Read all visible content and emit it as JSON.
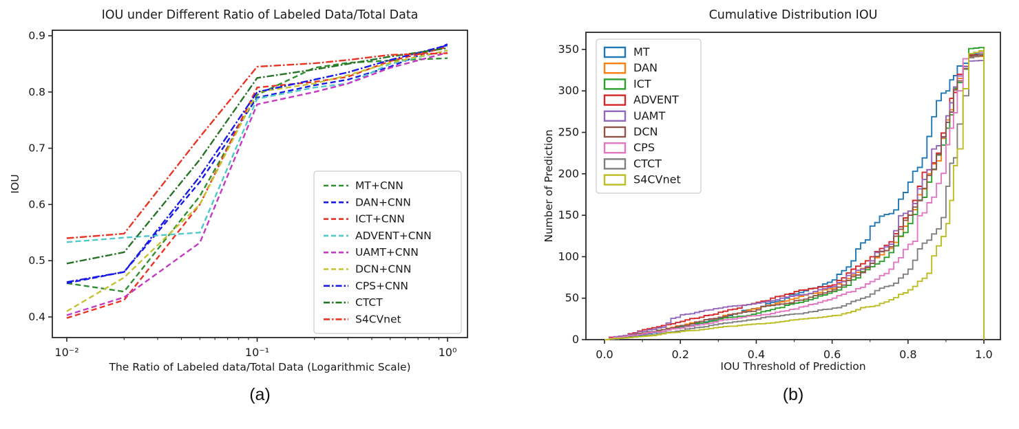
{
  "page": {
    "background": "#ffffff",
    "text_color": "#1a1a1a"
  },
  "chart_data": [
    {
      "id": "a",
      "type": "line",
      "title": "IOU under Different Ratio of Labeled Data/Total Data",
      "xlabel": "The Ratio of Labeled data/Total Data (Logarithmic Scale)",
      "ylabel": "IOU",
      "caption": "(a)",
      "xscale": "log",
      "xlim_log10": [
        -2.076,
        0.105
      ],
      "ylim": [
        0.378,
        0.91
      ],
      "xticks": [
        {
          "v": 0.01,
          "label": "10⁻²"
        },
        {
          "v": 0.1,
          "label": "10⁻¹"
        },
        {
          "v": 1.0,
          "label": "10⁰"
        }
      ],
      "yticks": [
        "0.4",
        "0.5",
        "0.6",
        "0.7",
        "0.8",
        "0.9"
      ],
      "grid": false,
      "legend_position": "lower right",
      "x": [
        0.01,
        0.02,
        0.05,
        0.1,
        0.2,
        0.3,
        0.5,
        1.0
      ],
      "series": [
        {
          "name": "MT+CNN",
          "color": "#2f8f2f",
          "dash": "dashed",
          "values": [
            0.46,
            0.445,
            0.615,
            0.795,
            0.843,
            0.852,
            0.856,
            0.86
          ]
        },
        {
          "name": "DAN+CNN",
          "color": "#1a1ae6",
          "dash": "dashed",
          "values": [
            0.46,
            0.48,
            0.64,
            0.79,
            0.812,
            0.822,
            0.845,
            0.885
          ]
        },
        {
          "name": "ICT+CNN",
          "color": "#ea3423",
          "dash": "dashed",
          "values": [
            0.398,
            0.43,
            0.6,
            0.808,
            0.818,
            0.827,
            0.855,
            0.88
          ]
        },
        {
          "name": "ADVENT+CNN",
          "color": "#4fc8c8",
          "dash": "dashed",
          "values": [
            0.533,
            0.541,
            0.55,
            0.788,
            0.808,
            0.815,
            0.85,
            0.874
          ]
        },
        {
          "name": "UAMT+CNN",
          "color": "#c438c4",
          "dash": "dashed",
          "values": [
            0.403,
            0.435,
            0.532,
            0.778,
            0.8,
            0.815,
            0.843,
            0.87
          ]
        },
        {
          "name": "DCN+CNN",
          "color": "#c6c232",
          "dash": "dashed",
          "values": [
            0.41,
            0.47,
            0.6,
            0.8,
            0.815,
            0.83,
            0.852,
            0.874
          ]
        },
        {
          "name": "CPS+CNN",
          "color": "#1a1ae6",
          "dash": "dashdot",
          "values": [
            0.462,
            0.48,
            0.65,
            0.8,
            0.822,
            0.835,
            0.857,
            0.883
          ]
        },
        {
          "name": "CTCT",
          "color": "#267326",
          "dash": "dashdot",
          "values": [
            0.495,
            0.515,
            0.68,
            0.825,
            0.84,
            0.85,
            0.863,
            0.878
          ]
        },
        {
          "name": "S4CVnet",
          "color": "#ea3423",
          "dash": "dashdot",
          "values": [
            0.54,
            0.548,
            0.72,
            0.845,
            0.851,
            0.857,
            0.866,
            0.869
          ]
        }
      ]
    },
    {
      "id": "b",
      "type": "step",
      "title": "Cumulative Distribution IOU",
      "xlabel": "IOU Threshold of Prediction",
      "ylabel": "Number of Prediction",
      "caption": "(b)",
      "xlim": [
        -0.049,
        1.043
      ],
      "ylim": [
        0,
        370
      ],
      "xticks": [
        "0.0",
        "0.2",
        "0.4",
        "0.6",
        "0.8",
        "1.0"
      ],
      "yticks": [
        0,
        50,
        100,
        150,
        200,
        250,
        300,
        350
      ],
      "grid": false,
      "legend_position": "upper left",
      "x": [
        0,
        0.05,
        0.1,
        0.15,
        0.2,
        0.25,
        0.3,
        0.35,
        0.4,
        0.45,
        0.5,
        0.55,
        0.6,
        0.65,
        0.7,
        0.75,
        0.8,
        0.85,
        0.9,
        0.93,
        0.96,
        1.0
      ],
      "series": [
        {
          "name": "MT",
          "color": "#1f77b4",
          "values": [
            0,
            3,
            6,
            10,
            15,
            20,
            26,
            32,
            38,
            46,
            55,
            62,
            72,
            95,
            137,
            152,
            190,
            245,
            300,
            330,
            344,
            345
          ]
        },
        {
          "name": "DAN",
          "color": "#ff7f0e",
          "values": [
            0,
            4,
            8,
            12,
            17,
            22,
            27,
            32,
            38,
            44,
            50,
            56,
            62,
            78,
            92,
            110,
            150,
            200,
            265,
            315,
            341,
            342
          ]
        },
        {
          "name": "ICT",
          "color": "#2ca02c",
          "values": [
            0,
            4,
            8,
            12,
            16,
            20,
            25,
            28,
            32,
            38,
            44,
            50,
            58,
            72,
            88,
            105,
            140,
            190,
            255,
            310,
            351,
            353
          ]
        },
        {
          "name": "ADVENT",
          "color": "#d62728",
          "values": [
            0,
            5,
            12,
            17,
            22,
            27,
            33,
            38,
            45,
            52,
            58,
            62,
            66,
            85,
            100,
            118,
            155,
            205,
            270,
            320,
            343,
            344
          ]
        },
        {
          "name": "UAMT",
          "color": "#9467bd",
          "values": [
            0,
            5,
            10,
            15,
            30,
            34,
            38,
            41,
            44,
            48,
            53,
            58,
            64,
            80,
            95,
            115,
            155,
            205,
            270,
            318,
            336,
            337
          ]
        },
        {
          "name": "DCN",
          "color": "#8c564b",
          "values": [
            0,
            4,
            8,
            12,
            17,
            22,
            27,
            32,
            36,
            42,
            47,
            53,
            60,
            76,
            92,
            112,
            150,
            198,
            262,
            312,
            342,
            343
          ]
        },
        {
          "name": "CPS",
          "color": "#e377c2",
          "values": [
            0,
            4,
            7,
            10,
            14,
            18,
            23,
            26,
            29,
            33,
            37,
            43,
            50,
            58,
            70,
            85,
            115,
            165,
            235,
            300,
            345,
            347
          ]
        },
        {
          "name": "CTCT",
          "color": "#7f7f7f",
          "values": [
            0,
            2,
            5,
            8,
            11,
            15,
            19,
            22,
            25,
            28,
            31,
            34,
            38,
            46,
            55,
            65,
            85,
            120,
            185,
            260,
            340,
            348
          ]
        },
        {
          "name": "S4CVnet",
          "color": "#bcbd22",
          "values": [
            0,
            2,
            4,
            7,
            10,
            12,
            15,
            17,
            19,
            21,
            24,
            26,
            29,
            34,
            40,
            48,
            60,
            80,
            140,
            230,
            345,
            351
          ]
        }
      ]
    }
  ]
}
